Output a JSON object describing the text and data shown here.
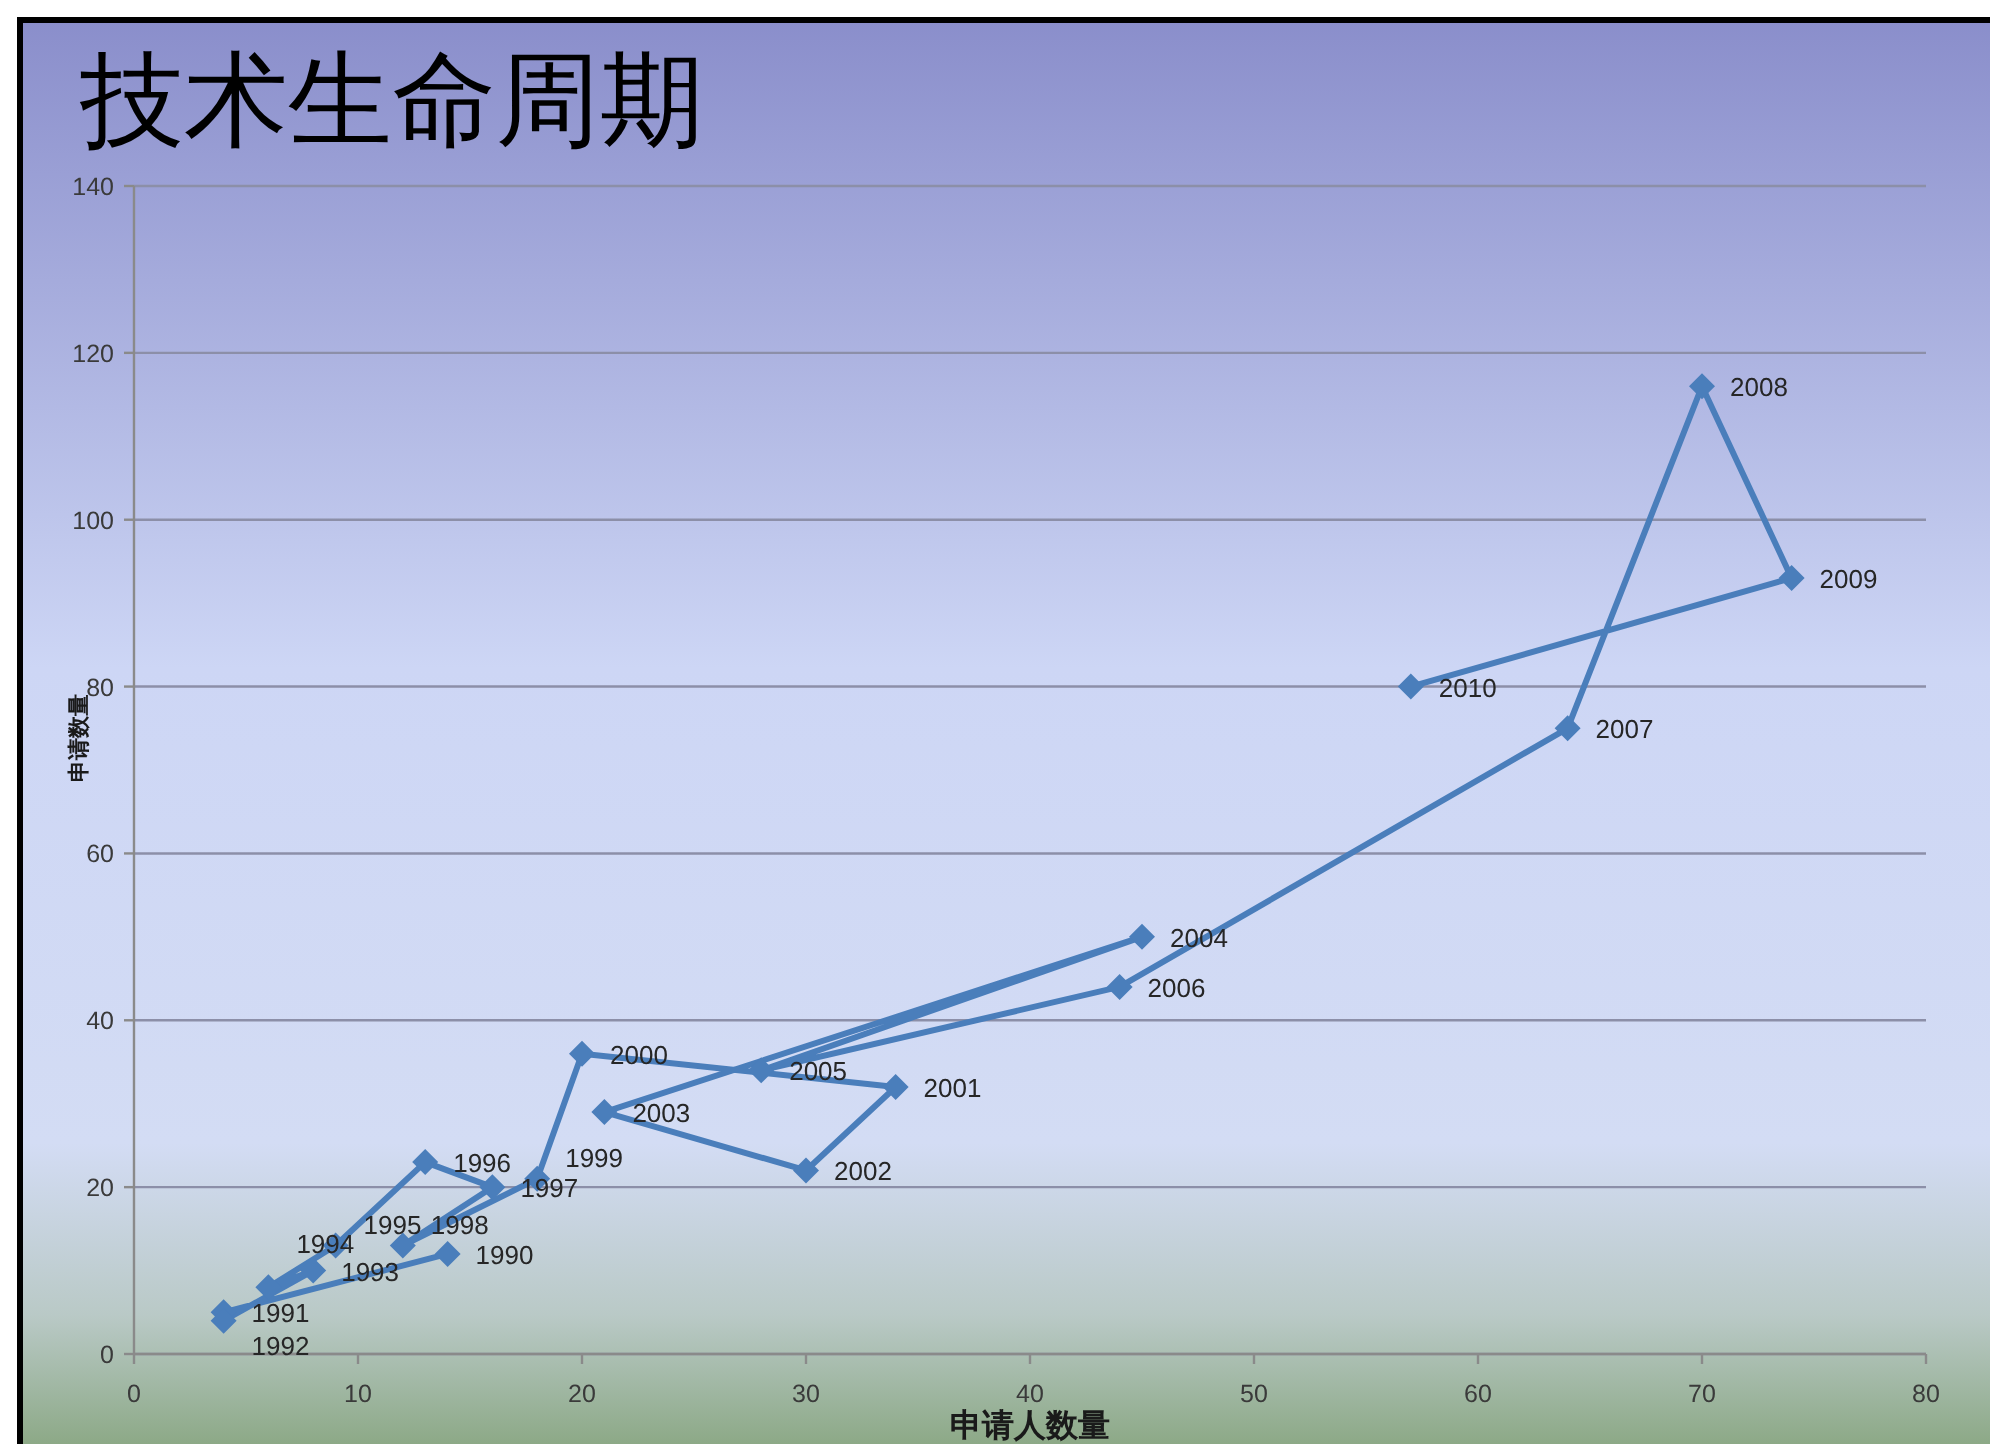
{
  "chart_data": {
    "type": "line",
    "title": "技术生命周期",
    "xlabel": "申请人数量",
    "ylabel": "申请数量",
    "x": [
      14,
      4,
      4,
      8,
      6,
      9,
      13,
      16,
      12,
      18,
      20,
      34,
      30,
      21,
      45,
      28,
      44,
      64,
      70,
      74,
      57
    ],
    "values": [
      12,
      5,
      4,
      10,
      8,
      13,
      23,
      20,
      13,
      21,
      36,
      32,
      22,
      29,
      50,
      34,
      44,
      75,
      116,
      93,
      80
    ],
    "color": "#4a7ebb",
    "marker": "diamond",
    "line_style": "solid",
    "grid": "y",
    "xlim": [
      0,
      80
    ],
    "xticks": [
      0,
      10,
      20,
      30,
      40,
      50,
      60,
      70,
      80
    ],
    "ylim": [
      0,
      140
    ],
    "yticks": [
      0,
      20,
      40,
      60,
      80,
      100,
      120,
      140
    ],
    "annotations": [
      {
        "text": "1990",
        "x": 14,
        "y": 12
      },
      {
        "text": "1991",
        "x": 4,
        "y": 5
      },
      {
        "text": "1992",
        "x": 4,
        "y": 4
      },
      {
        "text": "1993",
        "x": 8,
        "y": 10
      },
      {
        "text": "1994",
        "x": 6,
        "y": 8
      },
      {
        "text": "1995",
        "x": 9,
        "y": 13
      },
      {
        "text": "1996",
        "x": 13,
        "y": 23
      },
      {
        "text": "1997",
        "x": 16,
        "y": 20
      },
      {
        "text": "1998",
        "x": 12,
        "y": 13
      },
      {
        "text": "1999",
        "x": 18,
        "y": 21
      },
      {
        "text": "2000",
        "x": 20,
        "y": 36
      },
      {
        "text": "2001",
        "x": 34,
        "y": 32
      },
      {
        "text": "2002",
        "x": 30,
        "y": 22
      },
      {
        "text": "2003",
        "x": 21,
        "y": 29
      },
      {
        "text": "2004",
        "x": 45,
        "y": 50
      },
      {
        "text": "2005",
        "x": 28,
        "y": 34
      },
      {
        "text": "2006",
        "x": 44,
        "y": 44
      },
      {
        "text": "2007",
        "x": 64,
        "y": 75
      },
      {
        "text": "2008",
        "x": 70,
        "y": 116
      },
      {
        "text": "2009",
        "x": 74,
        "y": 93
      },
      {
        "text": "2010",
        "x": 57,
        "y": 80
      }
    ]
  }
}
